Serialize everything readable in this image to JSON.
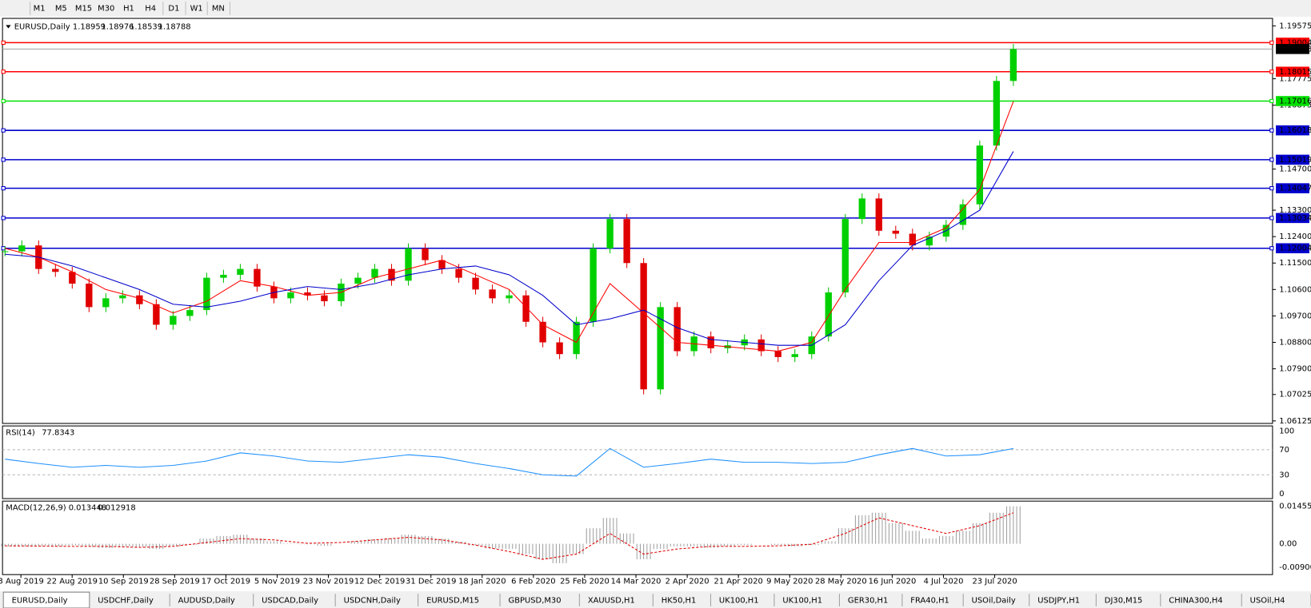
{
  "toolbar": {
    "timeframes": [
      "M1",
      "M5",
      "M15",
      "M30",
      "H1",
      "H4",
      "D1",
      "W1",
      "MN"
    ]
  },
  "chart": {
    "symbol": "EURUSD,Daily",
    "ohlc": [
      1.18959,
      1.18976,
      1.18539,
      1.18788
    ],
    "current_price": 1.18788,
    "ylim": [
      1.06125,
      1.19575
    ],
    "yticks": [
      1.19575,
      {
        "value": 1.17775,
        "label": "1.17775"
      },
      {
        "value": 1.16875,
        "label": "1.16875"
      },
      {
        "value": 1.147,
        "label": "1.14700"
      },
      {
        "value": 1.133,
        "label": "1.13300"
      },
      {
        "value": 1.124,
        "label": "1.12400"
      },
      {
        "value": 1.115,
        "label": "1.11500"
      },
      {
        "value": 1.106,
        "label": "1.10600"
      },
      {
        "value": 1.097,
        "label": "1.09700"
      },
      {
        "value": 1.088,
        "label": "1.08800"
      },
      {
        "value": 1.079,
        "label": "1.07900"
      },
      1.07025,
      1.06125
    ],
    "levels": [
      {
        "value": 1.19004,
        "color": "#ff0000"
      },
      {
        "value": 1.18015,
        "color": "#ff0000"
      },
      {
        "value": 1.17016,
        "color": "#00e000"
      },
      {
        "value": 1.16018,
        "color": "#0000cc"
      },
      {
        "value": 1.15019,
        "color": "#0000cc"
      },
      {
        "value": 1.14047,
        "color": "#0000cc"
      },
      {
        "value": 1.13034,
        "color": "#0000cc"
      },
      {
        "value": 1.12004,
        "color": "#0000cc"
      }
    ],
    "categories": [
      "3 Aug 2019",
      "22 Aug 2019",
      "10 Sep 2019",
      "28 Sep 2019",
      "17 Oct 2019",
      "5 Nov 2019",
      "23 Nov 2019",
      "12 Dec 2019",
      "31 Dec 2019",
      "18 Jan 2020",
      "6 Feb 2020",
      "25 Feb 2020",
      "14 Mar 2020",
      "2 Apr 2020",
      "21 Apr 2020",
      "9 May 2020",
      "28 May 2020",
      "16 Jun 2020",
      "4 Jul 2020",
      "23 Jul 2020"
    ],
    "closes": [
      1.119,
      1.121,
      1.113,
      1.112,
      1.108,
      1.1,
      1.103,
      1.104,
      1.101,
      1.094,
      1.097,
      1.099,
      1.11,
      1.111,
      1.113,
      1.107,
      1.103,
      1.105,
      1.104,
      1.102,
      1.108,
      1.11,
      1.113,
      1.109,
      1.12,
      1.116,
      1.113,
      1.11,
      1.106,
      1.103,
      1.104,
      1.095,
      1.088,
      1.084,
      1.095,
      1.12,
      1.13,
      1.115,
      1.072,
      1.1,
      1.085,
      1.09,
      1.086,
      1.087,
      1.089,
      1.085,
      1.083,
      1.084,
      1.09,
      1.105,
      1.13,
      1.137,
      1.126,
      1.125,
      1.121,
      1.124,
      1.128,
      1.135,
      1.155,
      1.177,
      1.18788
    ],
    "ma_fast": {
      "color": "#ff0000",
      "values": [
        1.12,
        1.117,
        1.112,
        1.106,
        1.103,
        1.098,
        1.102,
        1.109,
        1.107,
        1.104,
        1.105,
        1.11,
        1.113,
        1.116,
        1.111,
        1.106,
        1.094,
        1.088,
        1.108,
        1.098,
        1.088,
        1.087,
        1.086,
        1.085,
        1.088,
        1.106,
        1.122,
        1.122,
        1.127,
        1.14,
        1.17
      ]
    },
    "ma_slow": {
      "color": "#0000cc",
      "values": [
        1.118,
        1.117,
        1.114,
        1.11,
        1.106,
        1.101,
        1.1,
        1.102,
        1.105,
        1.107,
        1.106,
        1.108,
        1.111,
        1.113,
        1.114,
        1.111,
        1.104,
        1.094,
        1.096,
        1.099,
        1.093,
        1.089,
        1.088,
        1.087,
        1.087,
        1.094,
        1.109,
        1.121,
        1.126,
        1.133,
        1.153
      ]
    }
  },
  "rsi": {
    "label": "RSI(14)",
    "value": 77.8343,
    "ylim": [
      0,
      100
    ],
    "yticks": [
      100,
      70,
      30,
      0
    ],
    "color": "#1e90ff",
    "values": [
      55,
      48,
      42,
      45,
      42,
      45,
      52,
      65,
      60,
      52,
      50,
      56,
      62,
      58,
      48,
      40,
      30,
      28,
      72,
      42,
      48,
      55,
      50,
      50,
      48,
      50,
      62,
      72,
      60,
      62,
      72
    ]
  },
  "macd": {
    "label": "MACD(12,26,9)",
    "main": 0.013448,
    "signal": 0.012918,
    "ylim": [
      -0.009001,
      0.014556
    ],
    "yticks": [
      0.014556,
      {
        "value": 0,
        "label": "0.00"
      },
      -0.009001
    ],
    "histogram": [
      -0.001,
      -0.001,
      -0.0008,
      -0.001,
      -0.0006,
      -0.0012,
      -0.0016,
      -0.001,
      -0.0012,
      -0.002,
      -0.001,
      -0.0004,
      0.002,
      0.003,
      0.0035,
      0.002,
      0.001,
      0.0002,
      -0.0002,
      -0.0008,
      0,
      0.001,
      0.0018,
      0.0022,
      0.0035,
      0.003,
      0.002,
      0.0008,
      -0.0006,
      -0.0018,
      -0.002,
      -0.004,
      -0.006,
      -0.0075,
      -0.004,
      0.006,
      0.01,
      0.004,
      -0.006,
      -0.002,
      -0.001,
      -0.001,
      -0.0015,
      -0.001,
      -0.0005,
      0,
      -0.0005,
      -0.001,
      -0.0005,
      0.001,
      0.006,
      0.011,
      0.012,
      0.008,
      0.005,
      0.002,
      0.003,
      0.005,
      0.008,
      0.012,
      0.0145
    ],
    "signal_line": [
      -0.0008,
      -0.0009,
      -0.001,
      -0.001,
      -0.0014,
      -0.001,
      0.0005,
      0.002,
      0.0015,
      0.0002,
      0.0005,
      0.0015,
      0.0025,
      0.0015,
      -0.0005,
      -0.003,
      -0.006,
      -0.004,
      0.004,
      -0.004,
      -0.002,
      -0.001,
      -0.001,
      -0.0008,
      -0.0002,
      0.004,
      0.01,
      0.007,
      0.004,
      0.007,
      0.012
    ]
  },
  "tabs": [
    "EURUSD,Daily",
    "USDCHF,Daily",
    "AUDUSD,Daily",
    "USDCAD,Daily",
    "USDCNH,Daily",
    "EURUSD,M15",
    "GBPUSD,M30",
    "XAUUSD,H1",
    "HK50,H1",
    "UK100,H1",
    "UK100,H1",
    "GER30,H1",
    "FRA40,H1",
    "USOil,Daily",
    "USDJPY,H1",
    "DJ30,M15",
    "CHINA300,H4",
    "USOil,H4"
  ]
}
